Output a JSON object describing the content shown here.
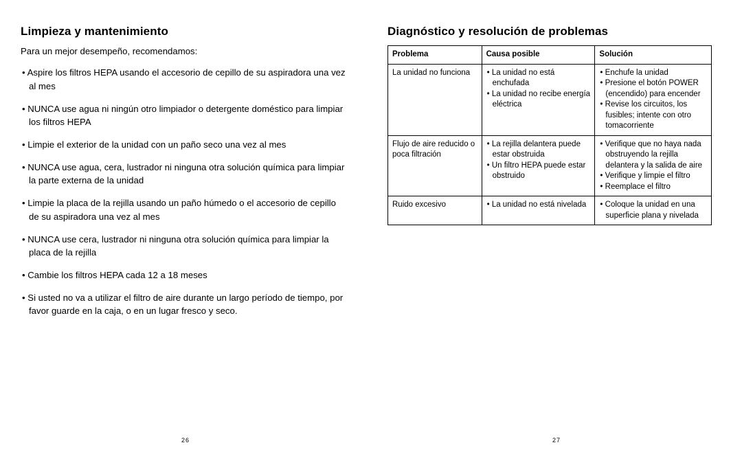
{
  "left": {
    "title": "Limpieza y mantenimiento",
    "intro": "Para un mejor desempeño, recomendamos:",
    "bullets": [
      "Aspire los filtros HEPA usando el accesorio de cepillo de su aspiradora una vez al mes",
      "NUNCA use agua ni ningún otro limpiador o detergente doméstico para limpiar los filtros HEPA",
      "Limpie el exterior de la unidad con un paño seco una vez al mes",
      "NUNCA use agua, cera, lustrador ni ninguna otra solución química para limpiar la parte externa de la unidad",
      "Limpie la placa de la rejilla usando un paño húmedo o el accesorio de cepillo de su aspiradora una vez al mes",
      "NUNCA use cera, lustrador ni ninguna otra solución química para limpiar la placa de la rejilla",
      "Cambie los filtros HEPA cada 12 a 18 meses",
      "Si usted no va a utilizar el filtro de aire durante un largo período de tiempo, por favor guarde en la caja, o en un lugar fresco y seco."
    ],
    "page_num": "26"
  },
  "right": {
    "title": "Diagnóstico y resolución de problemas",
    "table": {
      "headers": [
        "Problema",
        "Causa posible",
        "Solución"
      ],
      "rows": [
        {
          "problem": "La unidad no funciona",
          "causes": [
            "La unidad no está enchufada",
            "La unidad no recibe energía eléctrica"
          ],
          "solutions": [
            "Enchufe la unidad",
            "Presione el botón POWER (encendido) para encender",
            "Revise los circuitos, los fusibles; intente con otro tomacor­riente"
          ]
        },
        {
          "problem": "Flujo de aire reducido o poca filtración",
          "causes": [
            "La rejilla delantera puede estar obstruida",
            "Un filtro HEPA puede estar obstruido"
          ],
          "solutions": [
            "Verifique que no haya nada obstruyendo la rejilla delantera y la salida de aire",
            "Verifique y limpie el filtro",
            "Reemplace el filtro"
          ]
        },
        {
          "problem": "Ruido excesivo",
          "causes": [
            "La unidad no está nivelada"
          ],
          "solutions": [
            "Coloque la unidad en una superficie plana y nivelada"
          ]
        }
      ]
    },
    "page_num": "27"
  }
}
